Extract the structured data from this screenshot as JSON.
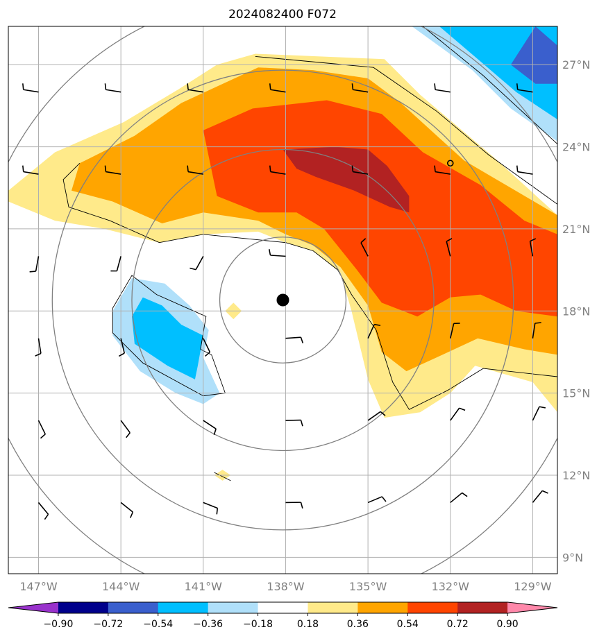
{
  "chart_data": {
    "type": "contour-map",
    "title": "2024082400 F072",
    "x_axis": {
      "unit": "longitude",
      "ticks": [
        {
          "value": -147,
          "label": "147°W"
        },
        {
          "value": -144,
          "label": "144°W"
        },
        {
          "value": -141,
          "label": "141°W"
        },
        {
          "value": -138,
          "label": "138°W"
        },
        {
          "value": -135,
          "label": "135°W"
        },
        {
          "value": -132,
          "label": "132°W"
        },
        {
          "value": -129,
          "label": "129°W"
        }
      ],
      "range": [
        -148.1,
        -128.1
      ]
    },
    "y_axis": {
      "unit": "latitude",
      "ticks": [
        {
          "value": 9,
          "label": "9°N"
        },
        {
          "value": 12,
          "label": "12°N"
        },
        {
          "value": 15,
          "label": "15°N"
        },
        {
          "value": 18,
          "label": "18°N"
        },
        {
          "value": 21,
          "label": "21°N"
        },
        {
          "value": 24,
          "label": "24°N"
        },
        {
          "value": 27,
          "label": "27°N"
        }
      ],
      "range": [
        8.4,
        28.4
      ]
    },
    "grid": true,
    "colorbar": {
      "position": "bottom",
      "levels": [
        -0.9,
        -0.72,
        -0.54,
        -0.36,
        -0.18,
        0.18,
        0.36,
        0.54,
        0.72,
        0.9
      ],
      "labels": [
        "−0.90",
        "−0.72",
        "−0.54",
        "−0.36",
        "−0.18",
        "0.18",
        "0.36",
        "0.54",
        "0.72",
        "0.90"
      ],
      "colors": [
        "#9932cc",
        "#00008b",
        "#3a5fcd",
        "#00bfff",
        "#b0e0fa",
        "#ffffff",
        "#ffea8a",
        "#ffa500",
        "#ff4500",
        "#b22222",
        "#ff88aa"
      ]
    },
    "center_marker": {
      "lon": -138.1,
      "lat": 18.4
    },
    "small_circle_marker": {
      "lon": -132.0,
      "lat": 23.4
    },
    "range_rings_deg": [
      2.3,
      5.5,
      8.4,
      11.2
    ],
    "filled_regions": [
      {
        "level": "0.18–0.36",
        "color": "#ffea8a",
        "points": [
          [
            -139.1,
            27.4
          ],
          [
            -134.4,
            27.2
          ],
          [
            -133.1,
            25.9
          ],
          [
            -130.4,
            23.6
          ],
          [
            -128.1,
            21.5
          ],
          [
            -128.1,
            14.3
          ],
          [
            -129.0,
            15.4
          ],
          [
            -131.1,
            16.0
          ],
          [
            -132.0,
            15.0
          ],
          [
            -133.1,
            14.3
          ],
          [
            -134.4,
            14.1
          ],
          [
            -135.0,
            15.5
          ],
          [
            -135.6,
            18.0
          ],
          [
            -136.0,
            19.4
          ],
          [
            -137.0,
            20.2
          ],
          [
            -138.0,
            20.5
          ],
          [
            -139.0,
            20.9
          ],
          [
            -141.0,
            20.8
          ],
          [
            -142.6,
            20.5
          ],
          [
            -144.6,
            21.0
          ],
          [
            -146.4,
            21.3
          ],
          [
            -148.1,
            22.0
          ],
          [
            -148.1,
            22.4
          ],
          [
            -146.4,
            23.8
          ],
          [
            -143.9,
            24.9
          ],
          [
            -141.9,
            26.1
          ],
          [
            -140.5,
            27.0
          ]
        ]
      },
      {
        "level": "0.36–0.54",
        "color": "#ffa500",
        "points": [
          [
            -139.0,
            26.9
          ],
          [
            -137.0,
            26.8
          ],
          [
            -135.0,
            26.5
          ],
          [
            -133.8,
            25.6
          ],
          [
            -131.5,
            23.5
          ],
          [
            -129.8,
            22.5
          ],
          [
            -128.1,
            21.5
          ],
          [
            -128.1,
            16.4
          ],
          [
            -129.3,
            16.6
          ],
          [
            -131.0,
            17.0
          ],
          [
            -132.5,
            16.3
          ],
          [
            -133.6,
            15.8
          ],
          [
            -134.5,
            16.5
          ],
          [
            -135.0,
            18.2
          ],
          [
            -136.0,
            19.6
          ],
          [
            -137.0,
            20.4
          ],
          [
            -138.0,
            20.8
          ],
          [
            -139.0,
            21.3
          ],
          [
            -141.0,
            21.6
          ],
          [
            -142.5,
            21.2
          ],
          [
            -144.3,
            22.0
          ],
          [
            -145.8,
            22.4
          ],
          [
            -145.5,
            23.4
          ],
          [
            -143.5,
            24.4
          ],
          [
            -141.8,
            25.6
          ]
        ]
      },
      {
        "level": "0.54–0.72",
        "color": "#ff4500",
        "points": [
          [
            -139.2,
            25.4
          ],
          [
            -136.5,
            25.7
          ],
          [
            -134.5,
            25.2
          ],
          [
            -133.0,
            23.8
          ],
          [
            -130.9,
            22.6
          ],
          [
            -129.3,
            21.3
          ],
          [
            -128.1,
            20.8
          ],
          [
            -128.1,
            17.8
          ],
          [
            -129.6,
            18.0
          ],
          [
            -130.9,
            18.6
          ],
          [
            -132.0,
            18.5
          ],
          [
            -133.2,
            17.8
          ],
          [
            -134.5,
            18.3
          ],
          [
            -135.4,
            19.5
          ],
          [
            -136.6,
            21.0
          ],
          [
            -137.6,
            21.6
          ],
          [
            -139.0,
            21.6
          ],
          [
            -140.5,
            22.2
          ],
          [
            -141.0,
            24.6
          ]
        ]
      },
      {
        "level": "0.72–0.90",
        "color": "#b22222",
        "points": [
          [
            -138.1,
            23.9
          ],
          [
            -136.2,
            24.0
          ],
          [
            -135.0,
            23.9
          ],
          [
            -134.3,
            23.3
          ],
          [
            -133.5,
            22.2
          ],
          [
            -133.5,
            21.6
          ],
          [
            -134.2,
            21.8
          ],
          [
            -135.5,
            22.4
          ],
          [
            -136.9,
            22.9
          ],
          [
            -137.6,
            23.2
          ]
        ]
      },
      {
        "level": "0.18–0.36",
        "color": "#ffea8a",
        "points": [
          [
            -140.3,
            12.2
          ],
          [
            -140.6,
            12.0
          ],
          [
            -140.3,
            11.8
          ],
          [
            -140.0,
            12.0
          ]
        ]
      },
      {
        "level": "0.18–0.36",
        "color": "#ffea8a",
        "points": [
          [
            -139.9,
            18.3
          ],
          [
            -139.6,
            18.0
          ],
          [
            -139.9,
            17.7
          ],
          [
            -140.2,
            18.0
          ]
        ]
      },
      {
        "level": "−0.36–−0.18",
        "color": "#b0e0fa",
        "points": [
          [
            -143.6,
            19.2
          ],
          [
            -142.4,
            19.0
          ],
          [
            -141.5,
            18.2
          ],
          [
            -140.8,
            17.3
          ],
          [
            -141.0,
            16.3
          ],
          [
            -140.4,
            15.0
          ],
          [
            -141.0,
            14.6
          ],
          [
            -142.0,
            15.0
          ],
          [
            -143.3,
            15.8
          ],
          [
            -144.3,
            17.1
          ],
          [
            -144.3,
            18.0
          ]
        ]
      },
      {
        "level": "−0.54–−0.36",
        "color": "#00bfff",
        "points": [
          [
            -143.2,
            18.5
          ],
          [
            -142.5,
            18.2
          ],
          [
            -141.8,
            17.5
          ],
          [
            -141.0,
            17.1
          ],
          [
            -141.2,
            16.0
          ],
          [
            -141.3,
            15.5
          ],
          [
            -142.3,
            16.0
          ],
          [
            -143.5,
            16.8
          ],
          [
            -143.6,
            17.8
          ]
        ]
      },
      {
        "level": "−0.36–−0.18",
        "color": "#b0e0fa",
        "points": [
          [
            -133.4,
            28.4
          ],
          [
            -128.1,
            28.4
          ],
          [
            -128.1,
            24.2
          ],
          [
            -129.8,
            25.4
          ],
          [
            -131.2,
            26.8
          ]
        ]
      },
      {
        "level": "−0.54–−0.36",
        "color": "#00bfff",
        "points": [
          [
            -132.4,
            28.4
          ],
          [
            -128.1,
            28.4
          ],
          [
            -128.1,
            25.0
          ],
          [
            -129.6,
            26.0
          ],
          [
            -131.0,
            27.2
          ]
        ]
      },
      {
        "level": "−0.72–−0.54",
        "color": "#3a5fcd",
        "points": [
          [
            -128.1,
            27.7
          ],
          [
            -128.9,
            28.4
          ],
          [
            -129.8,
            27.0
          ],
          [
            -128.9,
            26.3
          ],
          [
            -128.1,
            26.3
          ]
        ]
      }
    ],
    "contour_lines": [
      [
        [
          -139.1,
          27.3
        ],
        [
          -134.8,
          26.9
        ],
        [
          -132.5,
          25.3
        ],
        [
          -130.6,
          23.7
        ],
        [
          -128.1,
          21.9
        ]
      ],
      [
        [
          -128.1,
          15.6
        ],
        [
          -130.8,
          15.9
        ],
        [
          -132.1,
          15.1
        ],
        [
          -133.5,
          14.4
        ],
        [
          -134.1,
          15.4
        ],
        [
          -134.7,
          17.3
        ],
        [
          -135.6,
          18.6
        ],
        [
          -136.1,
          19.5
        ],
        [
          -137.0,
          20.2
        ],
        [
          -138.0,
          20.5
        ],
        [
          -139.0,
          20.6
        ],
        [
          -141.0,
          20.8
        ],
        [
          -142.6,
          20.5
        ],
        [
          -144.4,
          21.3
        ],
        [
          -145.9,
          21.8
        ],
        [
          -146.1,
          22.8
        ],
        [
          -145.5,
          23.4
        ]
      ],
      [
        [
          -141.1,
          16.6
        ],
        [
          -140.9,
          17.8
        ],
        [
          -142.7,
          18.6
        ],
        [
          -143.6,
          19.3
        ],
        [
          -144.3,
          18.1
        ],
        [
          -144.3,
          17.2
        ],
        [
          -143.2,
          16.1
        ],
        [
          -141.0,
          14.9
        ],
        [
          -140.2,
          15.0
        ],
        [
          -140.7,
          16.4
        ],
        [
          -141.1,
          16.6
        ]
      ],
      [
        [
          -133.0,
          28.4
        ],
        [
          -130.8,
          26.6
        ],
        [
          -128.1,
          24.1
        ]
      ],
      [
        [
          -140.4,
          12.0
        ],
        [
          -140.0,
          11.8
        ],
        [
          -140.6,
          12.1
        ],
        [
          -140.4,
          12.0
        ]
      ]
    ],
    "wind_barb_grid": {
      "lon_start": -147,
      "lon_step": 3,
      "lat_start": 11,
      "lat_step": 3,
      "columns": 7,
      "rows": 6
    }
  }
}
